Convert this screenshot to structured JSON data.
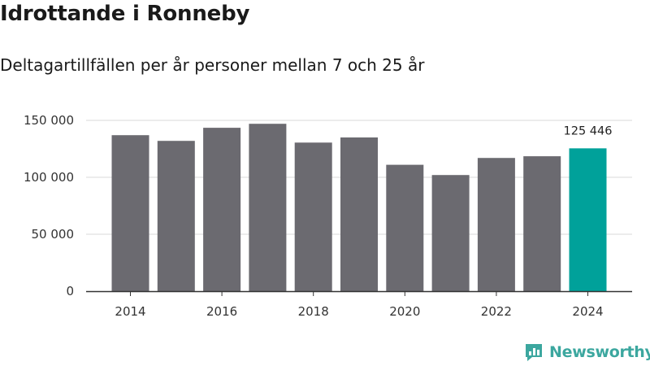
{
  "title": "Idrottande i Ronneby",
  "subtitle": "Deltagartillfällen per år personer mellan 7 och 25 år",
  "brand": "Newsworthy",
  "colors": {
    "bar": "#6b6a70",
    "highlight": "#00a19a",
    "grid": "#d9d9d9",
    "axis": "#333333",
    "brand": "#3ca79f"
  },
  "chart_data": {
    "type": "bar",
    "title": "Idrottande i Ronneby",
    "xlabel": "",
    "ylabel": "",
    "categories": [
      "2014",
      "2015",
      "2016",
      "2017",
      "2018",
      "2019",
      "2020",
      "2021",
      "2022",
      "2023",
      "2024"
    ],
    "values": [
      137000,
      132000,
      143500,
      147000,
      130500,
      135000,
      111000,
      102000,
      117000,
      118500,
      125446
    ],
    "highlight_index": 10,
    "highlight_label": "125 446",
    "ylim": [
      0,
      150000
    ],
    "yticks": [
      0,
      50000,
      100000,
      150000
    ],
    "ytick_labels": [
      "0",
      "50 000",
      "100 000",
      "150 000"
    ],
    "xtick_labels": [
      "2014",
      "2016",
      "2018",
      "2020",
      "2022",
      "2024"
    ],
    "grid": true
  }
}
